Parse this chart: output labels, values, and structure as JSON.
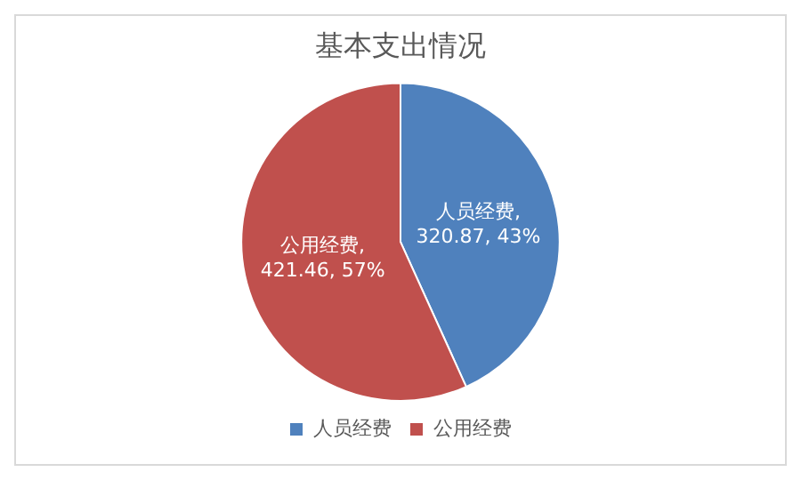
{
  "chart_data": {
    "type": "pie",
    "title": "基本支出情况",
    "categories": [
      "人员经费",
      "公用经费"
    ],
    "values": [
      320.87,
      421.46
    ],
    "colors": [
      "#4f81bd",
      "#c0504d"
    ],
    "value_labels": [
      "人员经费, 320.87, 43%",
      "公用经费, 421.46, 57%"
    ],
    "legend": "bottom"
  }
}
